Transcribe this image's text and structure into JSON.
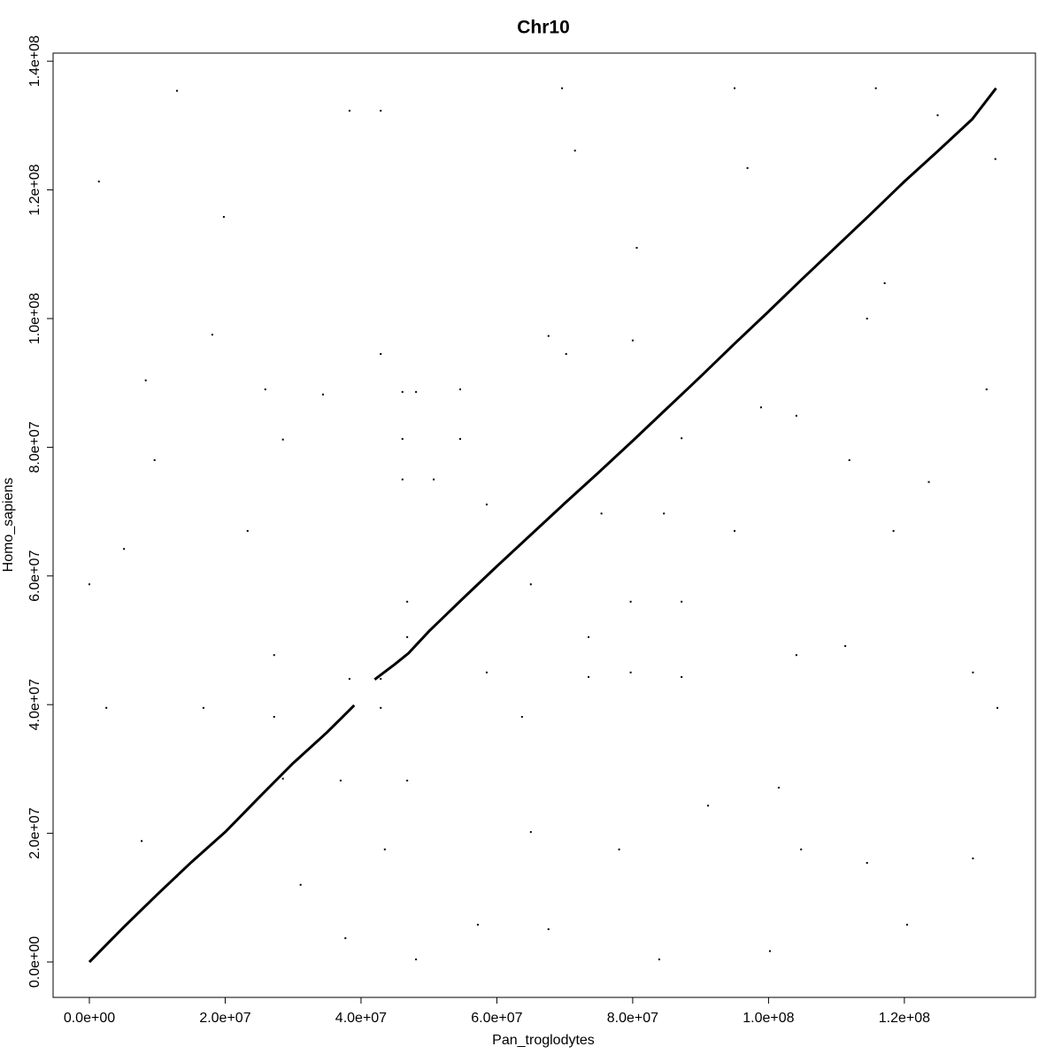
{
  "chart_data": {
    "type": "scatter",
    "title": "Chr10",
    "xlabel": "Pan_troglodytes",
    "ylabel": "Homo_sapiens",
    "xlim": [
      -5340000,
      139300000
    ],
    "ylim": [
      -5500000,
      141260000
    ],
    "xticks": [
      {
        "value": 0,
        "label": "0.0e+00"
      },
      {
        "value": 20000000,
        "label": "2.0e+07"
      },
      {
        "value": 40000000,
        "label": "4.0e+07"
      },
      {
        "value": 60000000,
        "label": "6.0e+07"
      },
      {
        "value": 80000000,
        "label": "8.0e+07"
      },
      {
        "value": 100000000,
        "label": "1.0e+08"
      },
      {
        "value": 120000000,
        "label": "1.2e+08"
      }
    ],
    "yticks": [
      {
        "value": 0,
        "label": "0.0e+00"
      },
      {
        "value": 20000000,
        "label": "2.0e+07"
      },
      {
        "value": 40000000,
        "label": "4.0e+07"
      },
      {
        "value": 60000000,
        "label": "6.0e+07"
      },
      {
        "value": 80000000,
        "label": "8.0e+07"
      },
      {
        "value": 100000000,
        "label": "1.0e+08"
      },
      {
        "value": 120000000,
        "label": "1.2e+08"
      },
      {
        "value": 140000000,
        "label": "1.4e+08"
      }
    ],
    "series": [
      {
        "type": "line",
        "color": "#000000",
        "x": [
          0,
          5000000,
          10000000,
          15000000,
          20000000,
          25000000,
          30000000,
          35000000,
          39000000,
          40500000,
          42000000,
          45000000,
          47000000,
          50000000,
          55000000,
          60000000,
          65000000,
          70000000,
          75000000,
          80000000,
          85000000,
          90000000,
          95000000,
          100000000,
          105000000,
          110000000,
          115000000,
          120000000,
          125000000,
          130000000,
          133500000
        ],
        "values": [
          0,
          5360000,
          10500000,
          15500000,
          20200000,
          25600000,
          30900000,
          35700000,
          39900000,
          null,
          43900000,
          46300000,
          48000000,
          51400000,
          56500000,
          61500000,
          66400000,
          71300000,
          76100000,
          81000000,
          86000000,
          91000000,
          96100000,
          101100000,
          106200000,
          111200000,
          116200000,
          121300000,
          126100000,
          131000000,
          135800000
        ]
      },
      {
        "type": "scatter",
        "color": "#000000",
        "x": [
          1400000,
          12900000,
          19800000,
          25900000,
          28500000,
          34400000,
          38300000,
          42900000,
          46100000,
          48100000,
          46100000,
          54600000,
          46100000,
          50700000,
          46800000,
          46800000,
          42900000,
          38300000,
          27200000,
          27200000,
          28500000,
          37000000,
          46800000,
          42900000,
          73500000,
          73500000,
          79700000,
          79700000,
          87200000,
          87200000,
          69600000,
          95000000,
          115800000,
          133400000,
          133700000,
          130100000,
          67600000,
          83900000,
          120400000,
          100200000,
          48100000,
          0,
          5100000,
          8300000,
          18100000,
          54600000,
          67600000,
          80000000,
          87200000,
          98900000,
          111900000,
          118400000,
          123600000,
          132100000,
          96900000,
          124900000,
          104100000,
          111300000,
          63700000,
          65000000,
          78000000,
          91100000,
          101500000,
          104800000,
          114500000,
          130100000,
          12900000,
          31100000,
          37700000,
          43500000,
          57200000,
          7700000,
          2500000,
          16800000,
          58500000,
          58500000,
          65000000,
          75400000,
          84600000,
          95000000,
          104100000,
          114500000,
          71500000,
          117100000,
          9600000,
          23300000,
          42900000,
          70200000,
          80600000
        ],
        "values": [
          121300000,
          135400000,
          115800000,
          89000000,
          81200000,
          88200000,
          132300000,
          132300000,
          88600000,
          88600000,
          81300000,
          81300000,
          75000000,
          75000000,
          56000000,
          50500000,
          44000000,
          44000000,
          47700000,
          38100000,
          28500000,
          28200000,
          28200000,
          39500000,
          50500000,
          44300000,
          56000000,
          45000000,
          56000000,
          44300000,
          135800000,
          135800000,
          135800000,
          124800000,
          39500000,
          45000000,
          5100000,
          400000,
          5800000,
          1700000,
          400000,
          58700000,
          64200000,
          90400000,
          97500000,
          89000000,
          97300000,
          96600000,
          81400000,
          86200000,
          78000000,
          67000000,
          74600000,
          89000000,
          123400000,
          131600000,
          47700000,
          49100000,
          38100000,
          20200000,
          17500000,
          24300000,
          27100000,
          17500000,
          15400000,
          16100000,
          13300000,
          12000000,
          3700000,
          17500000,
          5800000,
          18800000,
          39500000,
          39500000,
          45000000,
          71100000,
          58700000,
          69700000,
          69700000,
          67000000,
          84900000,
          100000000,
          126100000,
          105500000,
          78000000,
          67000000,
          94500000,
          94500000,
          111000000
        ]
      }
    ]
  }
}
